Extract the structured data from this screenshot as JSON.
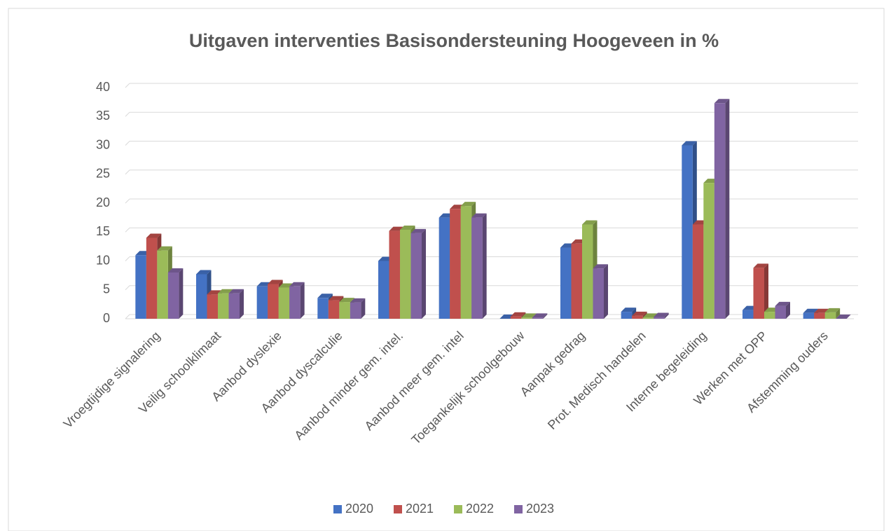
{
  "chart_data": {
    "type": "bar",
    "title": "Uitgaven interventies Basisondersteuning Hoogeveen in %",
    "categories": [
      "Vroegtijdige signalering",
      "Veilig schoolklimaat",
      "Aanbod dyslexie",
      "Aanbod dyscalculie",
      "Aanbod minder gem. intel.",
      "Aanbod meer gem. intel",
      "Toegankelijk schoolgebouw",
      "Aanpak gedrag",
      "Prot. Medisch handelen",
      "Interne begeleiding",
      "Werken met OPP",
      "Afstemming ouders"
    ],
    "series": [
      {
        "name": "2020",
        "color": "#4472c4",
        "values": [
          11,
          7.7,
          5.6,
          3.6,
          10,
          17.5,
          0,
          12.3,
          1.2,
          30,
          1.5,
          1
        ]
      },
      {
        "name": "2021",
        "color": "#c0504d",
        "values": [
          14,
          4.2,
          6,
          3.2,
          15.2,
          19,
          0.4,
          13,
          0.5,
          16.3,
          8.8,
          1
        ]
      },
      {
        "name": "2022",
        "color": "#9bbb59",
        "values": [
          11.8,
          4.4,
          5.4,
          2.9,
          15.4,
          19.5,
          0.2,
          16.3,
          0.2,
          23.5,
          1.2,
          1.1
        ]
      },
      {
        "name": "2023",
        "color": "#8064a2",
        "values": [
          8,
          4.4,
          5.6,
          2.8,
          14.8,
          17.5,
          0.2,
          8.7,
          0.3,
          37.3,
          2.2,
          0
        ]
      }
    ],
    "ylim": [
      0,
      40
    ],
    "yticks": [
      0,
      5,
      10,
      15,
      20,
      25,
      30,
      35,
      40
    ],
    "grid": true,
    "legend": "bottom"
  }
}
